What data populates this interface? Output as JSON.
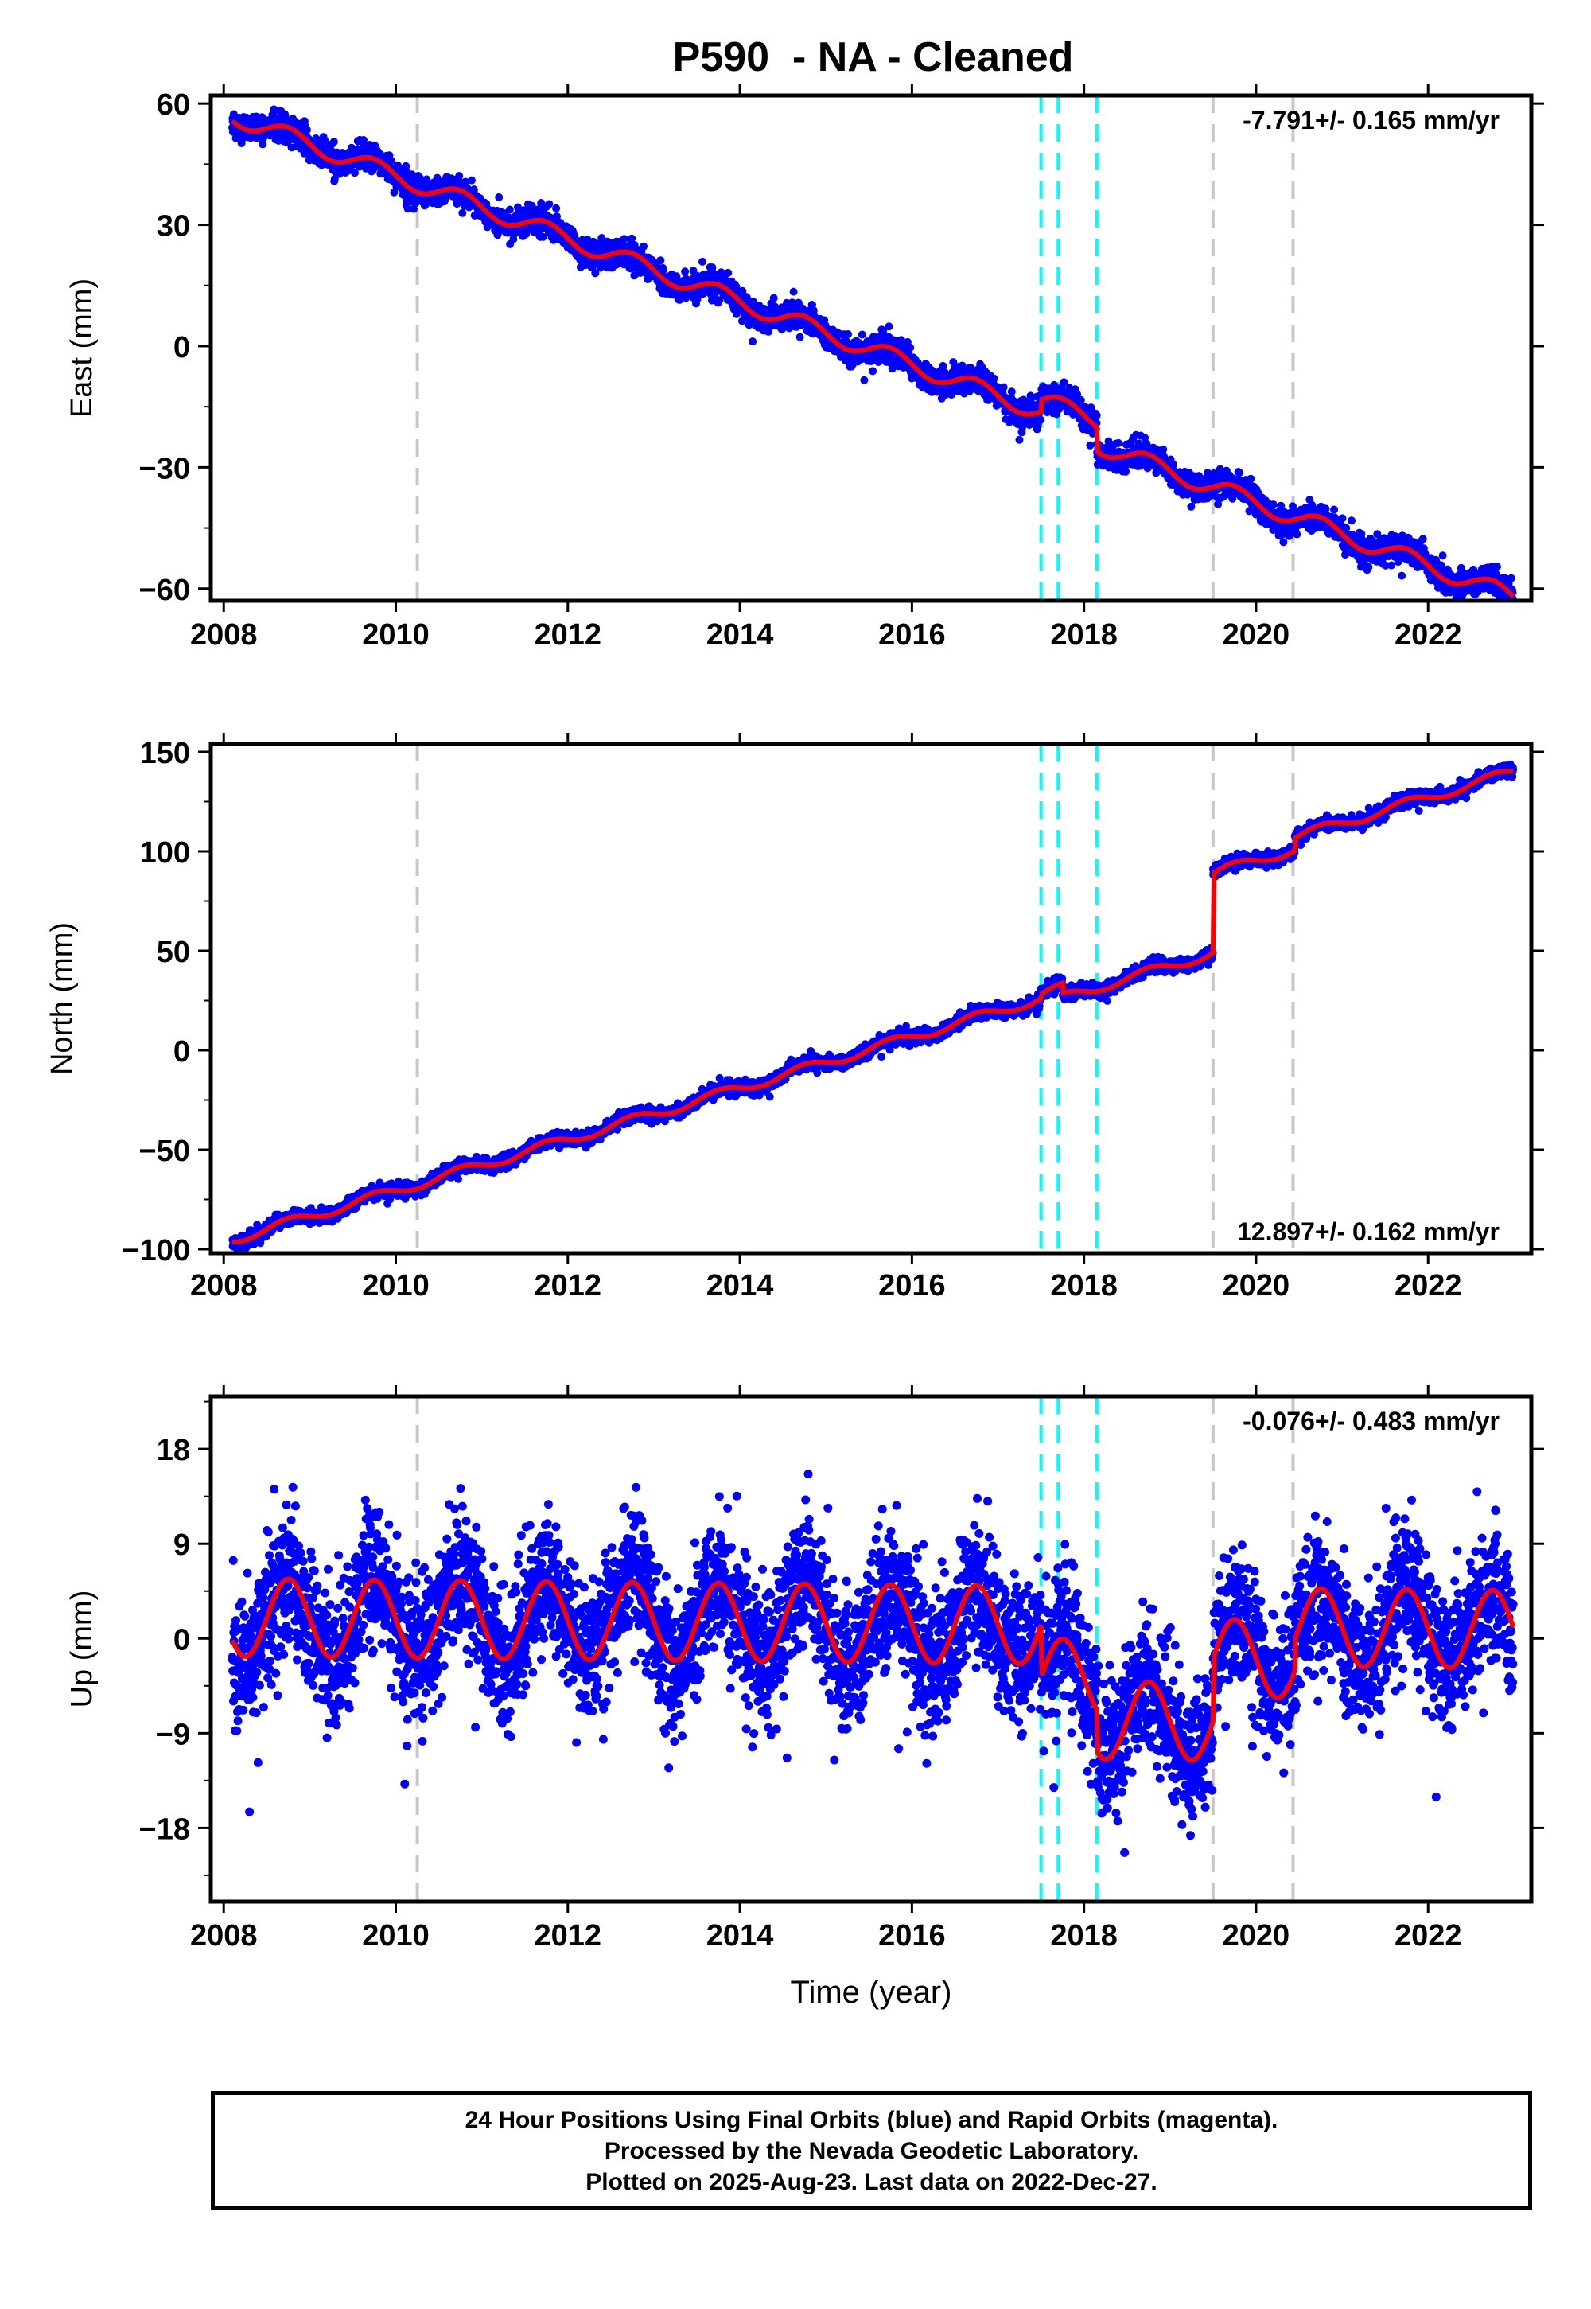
{
  "title": "P590  - NA - Cleaned",
  "chart_data": [
    {
      "type": "scatter",
      "panel": "east",
      "ylabel": "East (mm)",
      "xlabel": "",
      "xlim": [
        2007.85,
        2023.2
      ],
      "ylim": [
        -63,
        62
      ],
      "yticks": [
        60,
        30,
        0,
        -30,
        -60
      ],
      "ytick_labels": [
        "60",
        "30",
        "0",
        "−30",
        "−60"
      ],
      "xticks": [
        2008,
        2010,
        2012,
        2014,
        2016,
        2018,
        2020,
        2022
      ],
      "xtick_labels": [
        "2008",
        "2010",
        "2012",
        "2014",
        "2016",
        "2018",
        "2020",
        "2022"
      ],
      "rate_label": "-7.791+/- 0.165 mm/yr",
      "rate_position": "top-right",
      "series": [
        {
          "name": "",
          "color": "#0000ff",
          "kind": "daily positions",
          "trend": {
            "start_year": 2008.1,
            "start_value": 57,
            "rate": -7.791,
            "seasonal_amplitude": 2.2,
            "noise": 1.6
          },
          "offsets": [
            {
              "year": 2017.5,
              "value": 3
            },
            {
              "year": 2018.15,
              "value": -6
            }
          ]
        },
        {
          "name": "",
          "color": "#ff0000",
          "kind": "model fit"
        }
      ],
      "grid": false
    },
    {
      "type": "scatter",
      "panel": "north",
      "ylabel": "North (mm)",
      "xlabel": "",
      "xlim": [
        2007.85,
        2023.2
      ],
      "ylim": [
        -102,
        154
      ],
      "yticks": [
        150,
        100,
        50,
        0,
        -50,
        -100
      ],
      "ytick_labels": [
        "150",
        "100",
        "50",
        "0",
        "−50",
        "−100"
      ],
      "xticks": [
        2008,
        2010,
        2012,
        2014,
        2016,
        2018,
        2020,
        2022
      ],
      "xtick_labels": [
        "2008",
        "2010",
        "2012",
        "2014",
        "2016",
        "2018",
        "2020",
        "2022"
      ],
      "rate_label": "12.897+/- 0.162 mm/yr",
      "rate_position": "bottom-right",
      "series": [
        {
          "name": "",
          "color": "#0000ff",
          "kind": "daily positions",
          "trend": {
            "start_year": 2008.1,
            "start_value": -95,
            "rate": 12.897,
            "seasonal_amplitude": 2.4,
            "noise": 1.6
          },
          "offsets": [
            {
              "year": 2017.5,
              "value": 2
            },
            {
              "year": 2017.75,
              "value": -5
            },
            {
              "year": 2019.5,
              "value": 40
            },
            {
              "year": 2020.45,
              "value": 6
            }
          ]
        },
        {
          "name": "",
          "color": "#ff0000",
          "kind": "model fit"
        }
      ],
      "grid": false
    },
    {
      "type": "scatter",
      "panel": "up",
      "ylabel": "Up (mm)",
      "xlabel": "Time (year)",
      "xlim": [
        2007.85,
        2023.2
      ],
      "ylim": [
        -25,
        23
      ],
      "yticks": [
        18,
        9,
        0,
        -9,
        -18
      ],
      "ytick_labels": [
        "18",
        "9",
        "0",
        "−9",
        "−18"
      ],
      "xticks": [
        2008,
        2010,
        2012,
        2014,
        2016,
        2018,
        2020,
        2022
      ],
      "xtick_labels": [
        "2008",
        "2010",
        "2012",
        "2014",
        "2016",
        "2018",
        "2020",
        "2022"
      ],
      "rate_label": "-0.076+/- 0.483 mm/yr",
      "rate_position": "top-right",
      "series": [
        {
          "name": "",
          "color": "#0000ff",
          "kind": "daily positions",
          "trend": {
            "start_year": 2008.1,
            "start_value": 2,
            "rate": -0.076,
            "seasonal_amplitude": 3.7,
            "noise": 3.2
          },
          "offsets": [
            {
              "year": 2017.5,
              "value": -5
            },
            {
              "year": 2018.15,
              "value": -4
            },
            {
              "year": 2019.5,
              "value": 6
            },
            {
              "year": 2020.45,
              "value": 3
            }
          ]
        },
        {
          "name": "",
          "color": "#ff0000",
          "kind": "model fit"
        }
      ],
      "grid": false
    }
  ],
  "event_lines": {
    "gray": [
      2010.25,
      2019.5,
      2020.43
    ],
    "cyan": [
      2017.5,
      2017.7,
      2018.15
    ],
    "gray_color": "#c8c8c8",
    "cyan_color": "#00ffff"
  },
  "footer": {
    "line1": "24 Hour Positions Using Final Orbits (blue) and Rapid Orbits (magenta).",
    "line2": "Processed by the Nevada Geodetic Laboratory.",
    "line3": "Plotted on 2025-Aug-23. Last data on 2022-Dec-27."
  }
}
